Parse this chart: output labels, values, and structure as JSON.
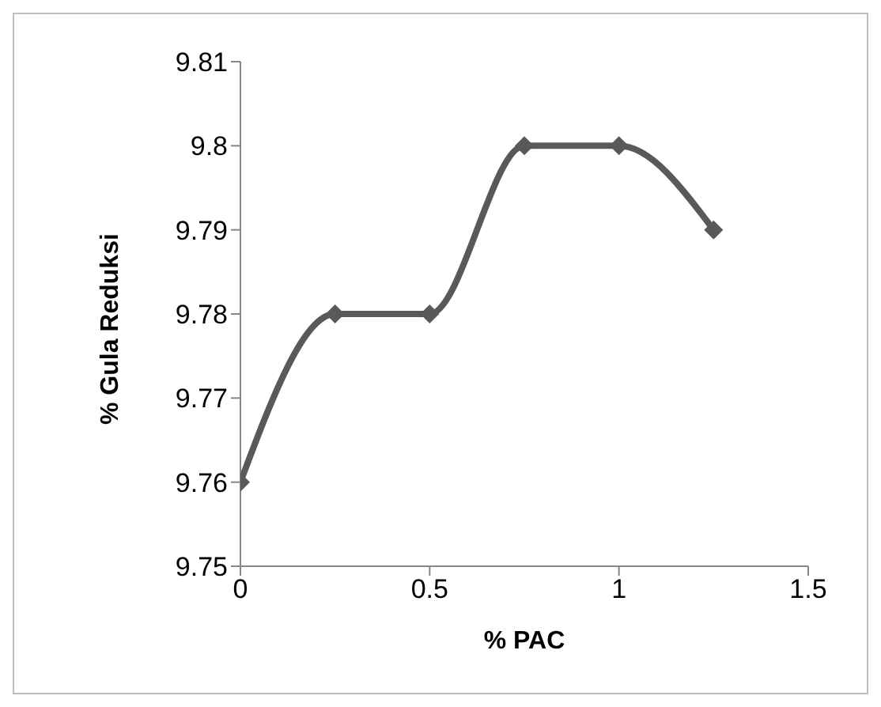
{
  "chart_data": {
    "type": "line",
    "xlabel": "% PAC",
    "ylabel": "% Gula Reduksi",
    "x": [
      0,
      0.25,
      0.5,
      0.75,
      1,
      1.25
    ],
    "series": [
      {
        "color": "#595959",
        "values": [
          9.76,
          9.78,
          9.78,
          9.8,
          9.8,
          9.79
        ]
      }
    ],
    "xlim": [
      0,
      1.5
    ],
    "xticks": [
      0,
      0.5,
      1,
      1.5
    ],
    "ylim": [
      9.75,
      9.81
    ],
    "yticks": [
      9.75,
      9.76,
      9.77,
      9.78,
      9.79,
      9.8,
      9.81
    ],
    "grid": false,
    "legend": false,
    "marker": "diamond",
    "line_style": "solid"
  }
}
